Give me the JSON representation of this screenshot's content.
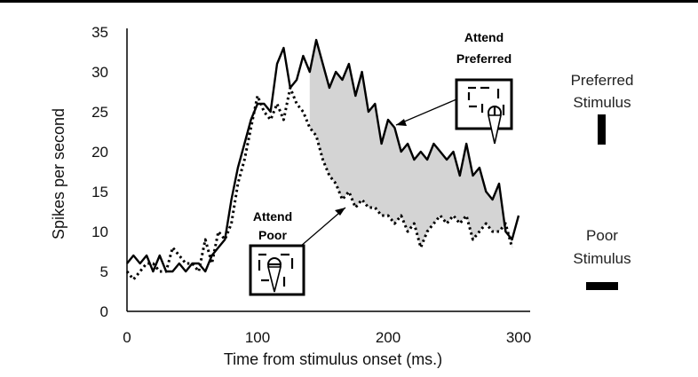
{
  "chart_data": {
    "type": "line",
    "title": "",
    "xlabel": "Time from stimulus onset (ms.)",
    "ylabel": "Spikes per second",
    "xlim": [
      0,
      310
    ],
    "ylim": [
      0,
      35
    ],
    "xticks": [
      "0",
      "100",
      "200",
      "300"
    ],
    "yticks": [
      "0",
      "5",
      "10",
      "15",
      "20",
      "25",
      "30",
      "35"
    ],
    "grid": false,
    "shaded_region": "between Attend Preferred and Attend Poor series, x 140 to 295",
    "series": [
      {
        "name": "Attend Preferred",
        "style": "solid",
        "x": [
          0,
          5,
          10,
          15,
          20,
          25,
          30,
          35,
          40,
          45,
          50,
          55,
          60,
          65,
          70,
          75,
          80,
          85,
          90,
          95,
          100,
          105,
          110,
          115,
          120,
          125,
          130,
          135,
          140,
          145,
          150,
          155,
          160,
          165,
          170,
          175,
          180,
          185,
          190,
          195,
          200,
          205,
          210,
          215,
          220,
          225,
          230,
          235,
          240,
          245,
          250,
          255,
          260,
          265,
          270,
          275,
          280,
          285,
          290,
          295,
          300
        ],
        "values": [
          6,
          7,
          6,
          7,
          5,
          7,
          5,
          5,
          6,
          5,
          6,
          6,
          5,
          7,
          8,
          9,
          14,
          18,
          21,
          24,
          26,
          26,
          25,
          31,
          33,
          28,
          29,
          32,
          30,
          34,
          31,
          28,
          30,
          29,
          31,
          27,
          30,
          25,
          26,
          21,
          24,
          23,
          20,
          21,
          19,
          20,
          19,
          21,
          20,
          19,
          20,
          17,
          21,
          17,
          18,
          15,
          14,
          16,
          10,
          9,
          12
        ]
      },
      {
        "name": "Attend Poor",
        "style": "dotted",
        "x": [
          0,
          5,
          10,
          15,
          20,
          25,
          30,
          35,
          40,
          45,
          50,
          55,
          60,
          65,
          70,
          75,
          80,
          85,
          90,
          95,
          100,
          105,
          110,
          115,
          120,
          125,
          130,
          135,
          140,
          145,
          150,
          155,
          160,
          165,
          170,
          175,
          180,
          185,
          190,
          195,
          200,
          205,
          210,
          215,
          220,
          225,
          230,
          235,
          240,
          245,
          250,
          255,
          260,
          265,
          270,
          275,
          280,
          285,
          290,
          295
        ],
        "values": [
          5,
          4,
          5,
          6,
          6,
          5,
          5,
          8,
          7,
          6,
          6,
          5,
          9,
          6,
          10,
          9,
          11,
          16,
          19,
          23,
          27,
          25,
          24,
          26,
          24,
          28,
          26,
          25,
          23,
          22,
          19,
          17,
          16,
          14,
          15,
          13,
          14,
          13,
          13,
          12,
          12,
          11,
          12,
          10,
          11,
          8,
          10,
          11,
          12,
          11,
          12,
          11,
          12,
          9,
          10,
          11,
          10,
          10,
          11,
          8
        ]
      }
    ]
  },
  "insets": {
    "preferred": {
      "title_line1": "Attend",
      "title_line2": "Preferred"
    },
    "poor": {
      "title_line1": "Attend",
      "title_line2": "Poor"
    }
  },
  "key": {
    "preferred": {
      "line1": "Preferred",
      "line2": "Stimulus"
    },
    "poor": {
      "line1": "Poor",
      "line2": "Stimulus"
    }
  }
}
